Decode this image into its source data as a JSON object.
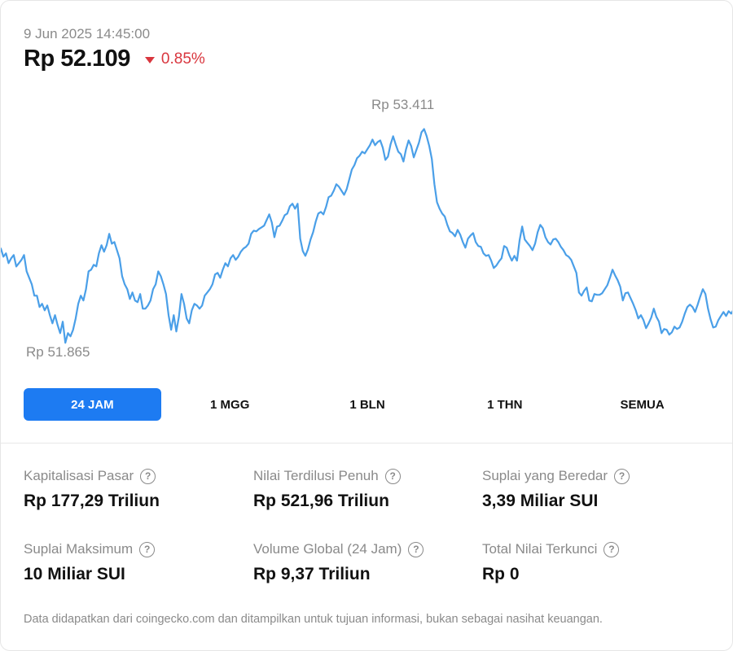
{
  "header": {
    "timestamp": "9 Jun 2025 14:45:00",
    "price": "Rp 52.109",
    "change": "0.85%",
    "change_direction": "down",
    "change_color": "#d9363e"
  },
  "chart_data": {
    "type": "line",
    "title": "",
    "xlabel": "",
    "ylabel": "",
    "ylim": [
      51690,
      53750
    ],
    "line_color": "#4a9fe8",
    "grid": false,
    "high_label": "Rp 53.411",
    "low_label": "Rp 51.865",
    "series": [
      {
        "values": [
          52547,
          52488,
          52512,
          52441,
          52476,
          52500,
          52417,
          52441,
          52465,
          52500,
          52382,
          52335,
          52288,
          52206,
          52206,
          52124,
          52147,
          52100,
          52135,
          52065,
          52006,
          52065,
          51994,
          51935,
          52018,
          51865,
          51935,
          51912,
          51959,
          52041,
          52147,
          52206,
          52171,
          52253,
          52382,
          52394,
          52429,
          52418,
          52512,
          52571,
          52524,
          52571,
          52653,
          52582,
          52594,
          52535,
          52476,
          52347,
          52288,
          52253,
          52182,
          52229,
          52171,
          52159,
          52218,
          52112,
          52112,
          52135,
          52171,
          52253,
          52288,
          52382,
          52347,
          52288,
          52218,
          52065,
          51959,
          52065,
          51947,
          52053,
          52218,
          52147,
          52041,
          52006,
          52100,
          52147,
          52135,
          52112,
          52135,
          52206,
          52229,
          52253,
          52288,
          52359,
          52371,
          52335,
          52394,
          52441,
          52418,
          52476,
          52500,
          52465,
          52488,
          52524,
          52547,
          52559,
          52582,
          52653,
          52676,
          52671,
          52688,
          52700,
          52712,
          52753,
          52794,
          52735,
          52629,
          52705,
          52712,
          52747,
          52788,
          52800,
          52853,
          52871,
          52835,
          52871,
          52618,
          52529,
          52494,
          52541,
          52612,
          52665,
          52741,
          52800,
          52812,
          52794,
          52847,
          52918,
          52929,
          52965,
          53012,
          52994,
          52965,
          52935,
          52976,
          53047,
          53118,
          53150,
          53200,
          53218,
          53247,
          53235,
          53265,
          53294,
          53335,
          53294,
          53317,
          53329,
          53276,
          53188,
          53212,
          53300,
          53359,
          53300,
          53247,
          53229,
          53176,
          53265,
          53329,
          53288,
          53206,
          53259,
          53312,
          53388,
          53411,
          53359,
          53288,
          53194,
          53012,
          52882,
          52835,
          52800,
          52779,
          52718,
          52671,
          52659,
          52635,
          52682,
          52647,
          52594,
          52553,
          52618,
          52641,
          52659,
          52594,
          52565,
          52559,
          52512,
          52494,
          52500,
          52459,
          52406,
          52424,
          52453,
          52476,
          52565,
          52553,
          52500,
          52459,
          52494,
          52459,
          52606,
          52706,
          52612,
          52588,
          52565,
          52535,
          52582,
          52665,
          52718,
          52694,
          52629,
          52594,
          52576,
          52612,
          52618,
          52594,
          52559,
          52535,
          52500,
          52488,
          52465,
          52418,
          52371,
          52229,
          52206,
          52241,
          52265,
          52171,
          52165,
          52218,
          52212,
          52212,
          52224,
          52253,
          52282,
          52335,
          52394,
          52353,
          52318,
          52271,
          52171,
          52224,
          52229,
          52188,
          52147,
          52100,
          52041,
          52065,
          52029,
          51971,
          52006,
          52047,
          52112,
          52053,
          52018,
          51935,
          51965,
          51959,
          51924,
          51941,
          51982,
          51965,
          51976,
          52018,
          52076,
          52124,
          52141,
          52124,
          52088,
          52141,
          52200,
          52253,
          52218,
          52112,
          52035,
          51976,
          51982,
          52029,
          52059,
          52088,
          52059,
          52094,
          52076,
          52109
        ]
      }
    ]
  },
  "tabs": [
    {
      "label": "24 JAM",
      "active": true
    },
    {
      "label": "1 MGG",
      "active": false
    },
    {
      "label": "1 BLN",
      "active": false
    },
    {
      "label": "1 THN",
      "active": false
    },
    {
      "label": "SEMUA",
      "active": false
    }
  ],
  "stats": [
    {
      "label": "Kapitalisasi Pasar",
      "value": "Rp 177,29 Triliun"
    },
    {
      "label": "Nilai Terdilusi Penuh",
      "value": "Rp 521,96 Triliun"
    },
    {
      "label": "Suplai yang Beredar",
      "value": "3,39 Miliar SUI"
    },
    {
      "label": "Suplai Maksimum",
      "value": "10 Miliar SUI"
    },
    {
      "label": "Volume Global (24 Jam)",
      "value": "Rp 9,37 Triliun"
    },
    {
      "label": "Total Nilai Terkunci",
      "value": "Rp 0"
    }
  ],
  "accent_color": "#1d7bf2",
  "info_icon": "question-circle-icon",
  "footer": "Data didapatkan dari coingecko.com dan ditampilkan untuk tujuan informasi, bukan sebagai nasihat keuangan."
}
